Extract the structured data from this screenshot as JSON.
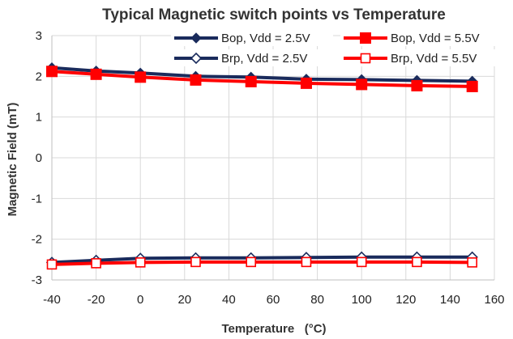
{
  "chart_data": {
    "type": "line",
    "title": "Typical Magnetic switch points vs Temperature",
    "xlabel": "Temperature   (°C)",
    "ylabel": "Magnetic Field (mT)",
    "xlim": [
      -40,
      160
    ],
    "ylim": [
      -3,
      3
    ],
    "xticks": [
      -40,
      -20,
      0,
      20,
      40,
      60,
      80,
      100,
      120,
      140,
      160
    ],
    "yticks": [
      -3,
      -2,
      -1,
      0,
      1,
      2,
      3
    ],
    "grid": true,
    "legend_position": "top-right",
    "x": [
      -40,
      -20,
      0,
      25,
      50,
      75,
      100,
      125,
      150
    ],
    "series": [
      {
        "name": "Bop, Vdd = 2.5V",
        "color": "#1a2b5c",
        "marker": "diamond-filled",
        "values": [
          2.21,
          2.13,
          2.08,
          2.0,
          1.98,
          1.93,
          1.92,
          1.9,
          1.88
        ]
      },
      {
        "name": "Bop, Vdd = 5.5V",
        "color": "#ff0000",
        "marker": "square-filled",
        "values": [
          2.12,
          2.05,
          1.98,
          1.91,
          1.87,
          1.83,
          1.8,
          1.77,
          1.75
        ]
      },
      {
        "name": "Brp, Vdd = 2.5V",
        "color": "#1a2b5c",
        "marker": "diamond-open",
        "values": [
          -2.57,
          -2.52,
          -2.47,
          -2.46,
          -2.46,
          -2.45,
          -2.44,
          -2.44,
          -2.44
        ]
      },
      {
        "name": "Brp, Vdd = 5.5V",
        "color": "#ff0000",
        "marker": "square-open",
        "values": [
          -2.62,
          -2.59,
          -2.57,
          -2.56,
          -2.56,
          -2.56,
          -2.56,
          -2.56,
          -2.57
        ]
      }
    ]
  }
}
